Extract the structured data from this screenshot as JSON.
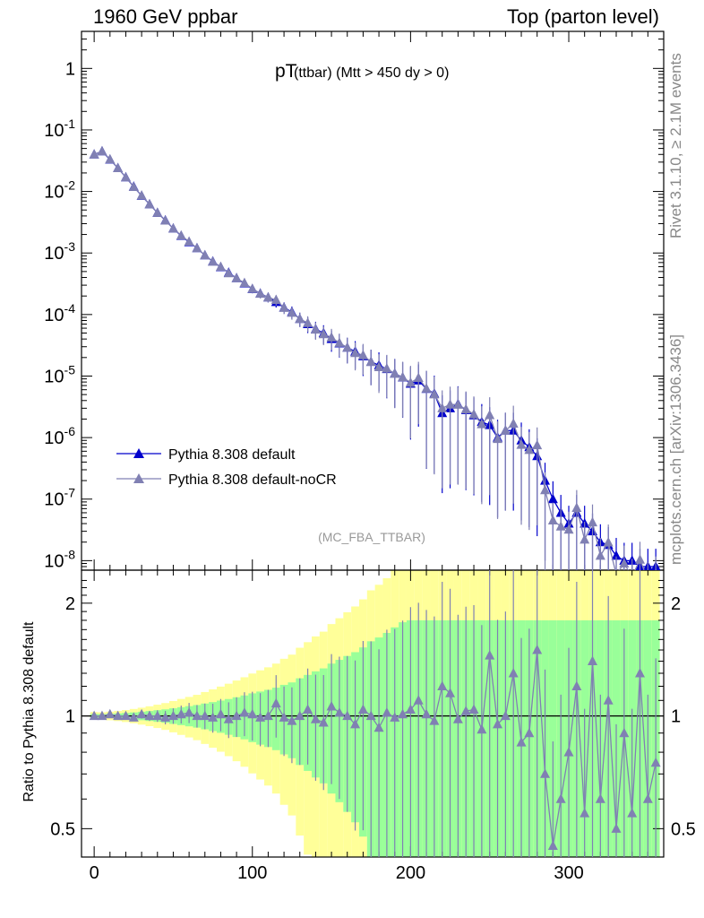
{
  "header": {
    "left": "1960 GeV ppbar",
    "right": "Top (parton level)"
  },
  "side_labels": {
    "top": "Rivet 3.1.10, ≥ 2.1M events",
    "bottom": "mcplots.cern.ch [arXiv:1306.3436]"
  },
  "title": {
    "main": "pT",
    "sub": "(ttbar) (Mtt > 450 dy > 0)"
  },
  "watermark": "(MC_FBA_TTBAR)",
  "ratio_ylabel": "Ratio to Pythia 8.308 default",
  "colors": {
    "series1": "#0000cc",
    "series2": "#8080b3",
    "band_yellow": "#ffff99",
    "band_green": "#99ff99"
  },
  "chart_data": [
    {
      "type": "line",
      "panel": "main",
      "yscale": "log",
      "xlim": [
        -8,
        360
      ],
      "ylim": [
        7e-09,
        4
      ],
      "ytick_labels": [
        "1",
        "10^-1",
        "10^-2",
        "10^-3",
        "10^-4",
        "10^-5",
        "10^-6",
        "10^-7",
        "10^-8"
      ],
      "x": [
        0,
        5,
        10,
        15,
        20,
        25,
        30,
        35,
        40,
        45,
        50,
        55,
        60,
        65,
        70,
        75,
        80,
        85,
        90,
        95,
        100,
        105,
        110,
        115,
        120,
        125,
        130,
        135,
        140,
        145,
        150,
        155,
        160,
        165,
        170,
        175,
        180,
        185,
        190,
        195,
        200,
        205,
        210,
        215,
        220,
        225,
        230,
        235,
        240,
        245,
        250,
        255,
        260,
        265,
        270,
        275,
        280,
        285,
        290,
        295,
        300,
        305,
        310,
        315,
        320,
        325,
        330,
        335,
        340,
        345,
        350,
        355
      ],
      "series": [
        {
          "name": "Pythia 8.308 default",
          "marker": "triangle",
          "values": [
            0.04,
            0.045,
            0.033,
            0.024,
            0.017,
            0.012,
            0.0085,
            0.0062,
            0.0045,
            0.0034,
            0.0025,
            0.0019,
            0.0015,
            0.0012,
            0.00092,
            0.00073,
            0.00059,
            0.00048,
            0.00039,
            0.00032,
            0.00026,
            0.00022,
            0.00019,
            0.00016,
            0.00013,
            0.00011,
            8.5e-05,
            7e-05,
            5.8e-05,
            5e-05,
            4e-05,
            3.4e-05,
            2.9e-05,
            2.5e-05,
            2.1e-05,
            1.7e-05,
            1.5e-05,
            1.3e-05,
            1.1e-05,
            9.5e-06,
            7.5e-06,
            8.5e-06,
            6.2e-06,
            5.2e-06,
            2.5e-06,
            3e-06,
            3.5e-06,
            2.8e-06,
            2.3e-06,
            1.8e-06,
            1.6e-06,
            1e-06,
            1.3e-06,
            1.3e-06,
            9e-07,
            7e-07,
            5e-07,
            2e-07,
            1e-07,
            6e-08,
            4e-08,
            6e-08,
            4e-08,
            3e-08,
            2e-08,
            1.8e-08,
            1.2e-08,
            1e-08,
            1e-08,
            8e-09,
            8e-09,
            8e-09
          ]
        },
        {
          "name": "Pythia 8.308 default-noCR",
          "marker": "triangle",
          "values": [
            0.04,
            0.045,
            0.033,
            0.024,
            0.017,
            0.012,
            0.0085,
            0.0062,
            0.0045,
            0.0034,
            0.0025,
            0.0019,
            0.0015,
            0.0012,
            0.00092,
            0.00073,
            0.00059,
            0.00048,
            0.00039,
            0.00032,
            0.00026,
            0.00022,
            0.00019,
            0.00016,
            0.00013,
            0.00011,
            8.5e-05,
            7e-05,
            5.8e-05,
            5e-05,
            4e-05,
            3.4e-05,
            2.9e-05,
            2.5e-05,
            2.1e-05,
            1.7e-05,
            1.5e-05,
            1.3e-05,
            1.1e-05,
            9.5e-06,
            7.5e-06,
            8.5e-06,
            6.2e-06,
            5.2e-06,
            2.5e-06,
            3e-06,
            3.5e-06,
            2.8e-06,
            2.3e-06,
            1.8e-06,
            1.6e-06,
            1e-06,
            1.3e-06,
            1.3e-06,
            9e-07,
            7e-07,
            5e-07,
            2e-07,
            1e-07,
            6e-08,
            4e-08,
            6e-08,
            4e-08,
            3e-08,
            2e-08,
            1.8e-08,
            1.2e-08,
            1e-08,
            1e-08,
            8e-09,
            8e-09,
            8e-09
          ]
        }
      ]
    },
    {
      "type": "line",
      "panel": "ratio",
      "yscale": "log",
      "xlim": [
        -8,
        360
      ],
      "ylim": [
        0.42,
        2.45
      ],
      "xlabel": "",
      "ylabel": "Ratio to Pythia 8.308 default",
      "yticks": [
        0.5,
        1,
        2
      ],
      "xticks": [
        0,
        100,
        200,
        300
      ],
      "x": [
        0,
        5,
        10,
        15,
        20,
        25,
        30,
        35,
        40,
        45,
        50,
        55,
        60,
        65,
        70,
        75,
        80,
        85,
        90,
        95,
        100,
        105,
        110,
        115,
        120,
        125,
        130,
        135,
        140,
        145,
        150,
        155,
        160,
        165,
        170,
        175,
        180,
        185,
        190,
        195,
        200,
        205,
        210,
        215,
        220,
        225,
        230,
        235,
        240,
        245,
        250,
        255,
        260,
        265,
        270,
        275,
        280,
        285,
        290,
        295,
        300,
        305,
        310,
        315,
        320,
        325,
        330,
        335,
        340,
        345,
        350,
        355
      ],
      "series": [
        {
          "name": "Pythia 8.308 default-noCR",
          "marker": "triangle",
          "values": [
            1.0,
            1.0,
            1.01,
            1.0,
            1.0,
            0.99,
            1.01,
            1.0,
            1.0,
            0.99,
            1.0,
            1.01,
            1.02,
            1.0,
            1.0,
            0.99,
            1.01,
            0.98,
            1.0,
            1.02,
            1.01,
            0.99,
            1.0,
            1.08,
            0.99,
            0.97,
            1.0,
            1.04,
            0.98,
            0.96,
            1.06,
            1.02,
            1.0,
            0.95,
            1.04,
            1.0,
            0.93,
            1.02,
            0.99,
            1.01,
            1.04,
            1.1,
            1.01,
            0.97,
            1.2,
            1.15,
            0.98,
            1.03,
            1.04,
            0.92,
            1.45,
            0.95,
            1.0,
            1.3,
            0.85,
            0.9,
            1.5,
            0.7,
            0.45,
            0.6,
            0.8,
            1.2,
            0.55,
            1.4,
            0.6,
            1.1,
            0.5,
            0.9,
            0.55,
            1.3,
            0.6,
            0.75
          ]
        }
      ]
    }
  ]
}
